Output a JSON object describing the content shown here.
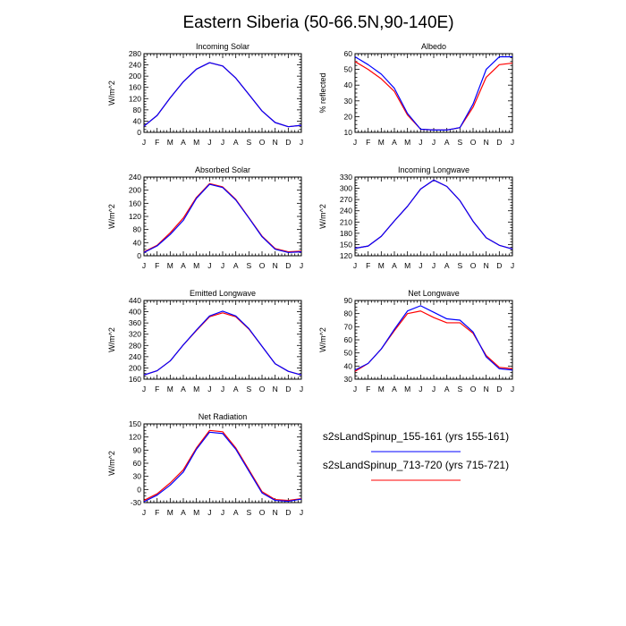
{
  "title": "Eastern Siberia (50-66.5N,90-140E)",
  "colors": {
    "series_a": "#0000ff",
    "series_b": "#ff0000"
  },
  "legend": [
    {
      "label": "s2sLandSpinup_155-161 (yrs 155-161)",
      "color": "#0000ff"
    },
    {
      "label": "s2sLandSpinup_713-720 (yrs 715-721)",
      "color": "#ff0000"
    }
  ],
  "chart_data": [
    {
      "type": "line",
      "title": "Incoming Solar",
      "ylabel": "W/m^2",
      "xlabel": "",
      "categories": [
        "J",
        "F",
        "M",
        "A",
        "M",
        "J",
        "J",
        "A",
        "S",
        "O",
        "N",
        "D",
        "J"
      ],
      "ylim": [
        0,
        280
      ],
      "yticks": [
        0,
        40,
        80,
        120,
        160,
        200,
        240,
        280
      ],
      "ytick_labels": [
        "0",
        "40",
        "80",
        "120",
        "160",
        "200",
        "240",
        "280"
      ],
      "series": [
        {
          "values": [
            22,
            60,
            123,
            180,
            225,
            248,
            236,
            193,
            135,
            76,
            35,
            20,
            25
          ],
          "color": "#0000ff"
        },
        {
          "values": [
            22,
            60,
            123,
            180,
            225,
            248,
            236,
            193,
            135,
            76,
            35,
            20,
            25
          ],
          "color": "#ff0000"
        }
      ]
    },
    {
      "type": "line",
      "title": "Albedo",
      "ylabel": "% reflected",
      "xlabel": "",
      "categories": [
        "J",
        "F",
        "M",
        "A",
        "M",
        "J",
        "J",
        "A",
        "S",
        "O",
        "N",
        "D",
        "J"
      ],
      "ylim": [
        10,
        60
      ],
      "yticks": [
        10,
        20,
        30,
        40,
        50,
        60
      ],
      "ytick_labels": [
        "10",
        "20",
        "30",
        "40",
        "50",
        "60"
      ],
      "series": [
        {
          "values": [
            58,
            53,
            47,
            38,
            22,
            12,
            11.5,
            11.5,
            13,
            28,
            50,
            58,
            58
          ],
          "color": "#0000ff"
        },
        {
          "values": [
            55,
            50,
            44,
            36,
            21,
            12,
            11.5,
            11.5,
            13,
            26,
            45,
            53,
            54
          ],
          "color": "#ff0000"
        }
      ]
    },
    {
      "type": "line",
      "title": "Absorbed Solar",
      "ylabel": "W/m^2",
      "xlabel": "",
      "categories": [
        "J",
        "F",
        "M",
        "A",
        "M",
        "J",
        "J",
        "A",
        "S",
        "O",
        "N",
        "D",
        "J"
      ],
      "ylim": [
        0,
        240
      ],
      "yticks": [
        0,
        40,
        80,
        120,
        160,
        200,
        240
      ],
      "ytick_labels": [
        "0",
        "40",
        "80",
        "120",
        "160",
        "200",
        "240"
      ],
      "series": [
        {
          "values": [
            10,
            30,
            65,
            108,
            175,
            218,
            208,
            170,
            115,
            58,
            20,
            10,
            12
          ],
          "color": "#0000ff"
        },
        {
          "values": [
            12,
            32,
            70,
            115,
            178,
            220,
            210,
            172,
            116,
            60,
            22,
            12,
            14
          ],
          "color": "#ff0000"
        }
      ]
    },
    {
      "type": "line",
      "title": "Incoming Longwave",
      "ylabel": "W/m^2",
      "xlabel": "",
      "categories": [
        "J",
        "F",
        "M",
        "A",
        "M",
        "J",
        "J",
        "A",
        "S",
        "O",
        "N",
        "D",
        "J"
      ],
      "ylim": [
        120,
        330
      ],
      "yticks": [
        120,
        150,
        180,
        210,
        240,
        270,
        300,
        330
      ],
      "ytick_labels": [
        "120",
        "150",
        "180",
        "210",
        "240",
        "270",
        "300",
        "330"
      ],
      "series": [
        {
          "values": [
            140,
            146,
            172,
            213,
            252,
            298,
            322,
            305,
            267,
            212,
            168,
            148,
            138
          ],
          "color": "#0000ff"
        },
        {
          "values": [
            140,
            146,
            172,
            213,
            252,
            298,
            322,
            305,
            267,
            212,
            168,
            148,
            138
          ],
          "color": "#ff0000"
        }
      ]
    },
    {
      "type": "line",
      "title": "Emitted Longwave",
      "ylabel": "W/m^2",
      "xlabel": "",
      "categories": [
        "J",
        "F",
        "M",
        "A",
        "M",
        "J",
        "J",
        "A",
        "S",
        "O",
        "N",
        "D",
        "J"
      ],
      "ylim": [
        160,
        440
      ],
      "yticks": [
        160,
        200,
        240,
        280,
        320,
        360,
        400,
        440
      ],
      "ytick_labels": [
        "160",
        "200",
        "240",
        "280",
        "320",
        "360",
        "400",
        "440"
      ],
      "series": [
        {
          "values": [
            175,
            190,
            225,
            282,
            335,
            385,
            402,
            385,
            340,
            277,
            215,
            188,
            175
          ],
          "color": "#0000ff"
        },
        {
          "values": [
            175,
            190,
            225,
            282,
            333,
            382,
            396,
            382,
            338,
            277,
            215,
            188,
            175
          ],
          "color": "#ff0000"
        }
      ]
    },
    {
      "type": "line",
      "title": "Net Longwave",
      "ylabel": "W/m^2",
      "xlabel": "",
      "categories": [
        "J",
        "F",
        "M",
        "A",
        "M",
        "J",
        "J",
        "A",
        "S",
        "O",
        "N",
        "D",
        "J"
      ],
      "ylim": [
        30,
        90
      ],
      "yticks": [
        30,
        40,
        50,
        60,
        70,
        80,
        90
      ],
      "ytick_labels": [
        "30",
        "40",
        "50",
        "60",
        "70",
        "80",
        "90"
      ],
      "series": [
        {
          "values": [
            37,
            42,
            53,
            68,
            82,
            86,
            81,
            76,
            75,
            66,
            47,
            38,
            37
          ],
          "color": "#0000ff"
        },
        {
          "values": [
            36,
            42,
            53,
            67,
            80,
            82,
            77,
            73,
            73,
            65,
            48,
            39,
            38
          ],
          "color": "#ff0000"
        }
      ]
    },
    {
      "type": "line",
      "title": "Net Radiation",
      "ylabel": "W/m^2",
      "xlabel": "",
      "categories": [
        "J",
        "F",
        "M",
        "A",
        "M",
        "J",
        "J",
        "A",
        "S",
        "O",
        "N",
        "D",
        "J"
      ],
      "ylim": [
        -30,
        150
      ],
      "yticks": [
        -30,
        0,
        30,
        60,
        90,
        120,
        150
      ],
      "ytick_labels": [
        "-30",
        "0",
        "30",
        "60",
        "90",
        "120",
        "150"
      ],
      "series": [
        {
          "values": [
            -28,
            -13,
            10,
            40,
            92,
            131,
            128,
            92,
            42,
            -8,
            -25,
            -27,
            -22
          ],
          "color": "#0000ff"
        },
        {
          "values": [
            -25,
            -10,
            15,
            45,
            95,
            135,
            132,
            95,
            45,
            -5,
            -23,
            -25,
            -21
          ],
          "color": "#ff0000"
        }
      ]
    }
  ]
}
